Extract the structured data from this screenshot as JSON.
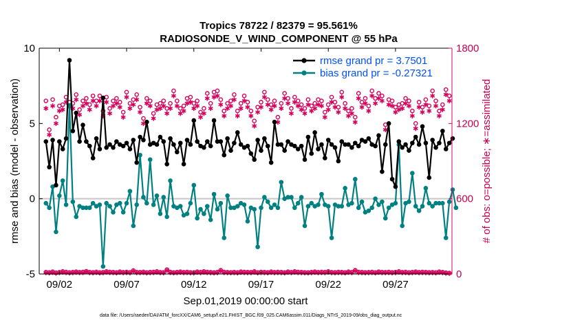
{
  "chart_data": {
    "type": "line",
    "title": "Tropics 78722 / 82379 = 95.561%",
    "subtitle": "RADIOSONDE_V_WIND_COMPONENT @ 55 hPa",
    "xlabel": "Sep.01,2019 00:00:00 start",
    "ylabel_left": "rmse and bias (model - observation)",
    "ylabel_right": "# of obs: o=possible; ∗=assimilated",
    "footer": "data file: /Users/raeder/DAI/ATM_forcXX/CAM6_setup/f.e21.FHIST_BGC.f09_025.CAM6assim.011/Diags_NTrS_2019-09/obs_diag_output.nc",
    "xlim": [
      0.5,
      31.2
    ],
    "ylim_left": [
      -5,
      10
    ],
    "ylim_right": [
      0,
      1800
    ],
    "x_ticks": [
      {
        "value": 2,
        "label": "09/02"
      },
      {
        "value": 7,
        "label": "09/07"
      },
      {
        "value": 12,
        "label": "09/12"
      },
      {
        "value": 17,
        "label": "09/17"
      },
      {
        "value": 22,
        "label": "09/22"
      },
      {
        "value": 27,
        "label": "09/27"
      }
    ],
    "y_ticks_left": [
      "-5",
      "0",
      "5",
      "10"
    ],
    "y_ticks_right": [
      "0",
      "600",
      "1200",
      "1800"
    ],
    "colors": {
      "rmse": "#000000",
      "bias": "#008080",
      "obs": "#d6005a",
      "legend_text": "#0050ff",
      "zero_line": "#c8c8c8"
    },
    "series": [
      {
        "name": "rmse grand pr = 3.7501",
        "axis": "left",
        "values": [
          3.8,
          2.1,
          3.9,
          0.9,
          3.8,
          3.3,
          4.0,
          9.2,
          4.5,
          5.7,
          3.8,
          4.9,
          3.8,
          3.5,
          2.7,
          4.0,
          3.3,
          6.7,
          3.4,
          3.6,
          3.4,
          3.8,
          3.6,
          3.5,
          3.7,
          3.3,
          3.9,
          2.4,
          4.1,
          3.9,
          5.1,
          3.6,
          3.7,
          3.6,
          4.1,
          3.8,
          2.3,
          4.0,
          3.6,
          3.1,
          3.7,
          2.3,
          3.9,
          3.6,
          5.2,
          3.8,
          3.5,
          3.4,
          3.8,
          3.5,
          5.2,
          3.8,
          3.8,
          2.9,
          4.0,
          3.2,
          3.7,
          4.4,
          3.6,
          3.4,
          3.5,
          3.0,
          2.6,
          3.9,
          3.2,
          4.0,
          3.5,
          2.4,
          5.1,
          3.6,
          3.6,
          3.2,
          3.8,
          3.6,
          3.5,
          3.3,
          3.5,
          2.6,
          4.1,
          3.0,
          4.4,
          3.3,
          3.6,
          2.7,
          3.9,
          3.6,
          3.4,
          2.5,
          3.8,
          3.6,
          3.6,
          3.4,
          3.7,
          3.5,
          3.9,
          3.8,
          4.0,
          3.6,
          3.5,
          4.2,
          1.8,
          3.6,
          5.0,
          1.3,
          0.8,
          3.8,
          3.4,
          3.6,
          3.2,
          3.7,
          4.1,
          3.6,
          4.8,
          3.7,
          1.4,
          3.9,
          3.4,
          3.7,
          4.5,
          3.3,
          3.7,
          4.0
        ]
      },
      {
        "name": "bias grand pr = -0.27321",
        "axis": "left",
        "values": [
          -0.3,
          -0.6,
          0.8,
          -2.2,
          0.2,
          1.2,
          -0.4,
          6.2,
          -0.2,
          -1.2,
          -0.5,
          -0.6,
          -0.6,
          -0.6,
          -0.3,
          -0.5,
          -0.4,
          -4.5,
          -0.3,
          -0.5,
          -0.9,
          -0.4,
          -0.3,
          -0.9,
          -0.3,
          0.5,
          -1.8,
          -0.4,
          2.9,
          0.1,
          -0.3,
          2.6,
          -0.4,
          0.2,
          -1.0,
          0.1,
          -1.2,
          1.2,
          -0.5,
          -0.6,
          -0.5,
          -1.1,
          -1.0,
          -0.3,
          0.9,
          -1.3,
          -0.7,
          -1.0,
          -0.5,
          -1.4,
          0.3,
          -0.7,
          -0.3,
          -2.6,
          0.2,
          -0.6,
          -0.6,
          -0.5,
          -0.3,
          -0.4,
          -1.5,
          -0.6,
          -0.7,
          -3.2,
          -0.6,
          0.1,
          -0.2,
          -0.6,
          -0.4,
          -0.6,
          1.1,
          0.0,
          0.1,
          0.1,
          -0.6,
          -0.3,
          0.1,
          -1.8,
          -0.5,
          -0.3,
          -0.5,
          -0.4,
          0.3,
          -0.4,
          -0.5,
          -2.6,
          -0.4,
          -0.5,
          -0.5,
          0.7,
          -0.4,
          -0.3,
          1.3,
          -0.6,
          -0.2,
          -0.9,
          -0.8,
          -0.6,
          0.0,
          -0.4,
          -0.2,
          -1.3,
          -0.6,
          -0.4,
          -0.3,
          3.6,
          -1.8,
          -0.3,
          -0.2,
          1.7,
          -0.5,
          -0.8,
          -0.5,
          0.7,
          -0.3,
          -0.5,
          -0.3,
          -0.3,
          -0.3,
          -2.6,
          -0.2,
          0.6,
          -0.6
        ]
      },
      {
        "name": "possible",
        "axis": "right",
        "marker": "o",
        "values": [
          1380,
          1150,
          1390,
          1250,
          1340,
          1350,
          1410,
          1370,
          1360,
          1430,
          1310,
          1380,
          1400,
          1350,
          1420,
          1380,
          1420,
          1300,
          1410,
          1320,
          1380,
          1400,
          1370,
          1290,
          1450,
          1360,
          1390,
          1430,
          1330,
          1240,
          1400,
          1380,
          1280,
          1350,
          1360,
          1380,
          1320,
          1360,
          1460,
          1380,
          1320,
          1340,
          1400,
          1410,
          1360,
          1380,
          1290,
          1320,
          1440,
          1360,
          1450,
          1460,
          1390,
          1300,
          1360,
          1380,
          1430,
          1300,
          1360,
          1420,
          1370,
          1300,
          1220,
          1330,
          1370,
          1450,
          1390,
          1350,
          1380,
          1250,
          1360,
          1440,
          1400,
          1320,
          1410,
          1380,
          1350,
          1320,
          1390,
          1340,
          1360,
          1390,
          1380,
          1290,
          1350,
          1410,
          1370,
          1330,
          1450,
          1360,
          1300,
          1320,
          1250,
          1440,
          1370,
          1400,
          1340,
          1460,
          1400,
          1440,
          1420,
          1190,
          1390,
          1380,
          1330,
          1350,
          1360,
          1400,
          1380,
          1300,
          1200,
          1370,
          1330,
          1390,
          1340,
          1460,
          1380,
          1300,
          1350,
          1470,
          1420
        ]
      },
      {
        "name": "assimilated",
        "axis": "right",
        "marker": "*",
        "values": [
          1320,
          1110,
          1340,
          1200,
          1300,
          1310,
          1370,
          1330,
          1320,
          1390,
          1270,
          1340,
          1360,
          1310,
          1380,
          1340,
          1380,
          1260,
          1370,
          1280,
          1340,
          1360,
          1330,
          1250,
          1410,
          1320,
          1350,
          1390,
          1290,
          1200,
          1360,
          1340,
          1240,
          1310,
          1320,
          1340,
          1280,
          1320,
          1420,
          1340,
          1280,
          1300,
          1360,
          1370,
          1320,
          1340,
          1250,
          1280,
          1400,
          1320,
          1410,
          1420,
          1350,
          1260,
          1320,
          1340,
          1390,
          1260,
          1320,
          1380,
          1330,
          1260,
          1180,
          1290,
          1330,
          1410,
          1350,
          1310,
          1340,
          1210,
          1320,
          1400,
          1360,
          1280,
          1370,
          1340,
          1310,
          1280,
          1350,
          1300,
          1320,
          1350,
          1340,
          1250,
          1310,
          1370,
          1330,
          1290,
          1410,
          1320,
          1260,
          1280,
          1210,
          1400,
          1330,
          1360,
          1300,
          1420,
          1360,
          1400,
          1380,
          1150,
          1350,
          1340,
          1290,
          1310,
          1320,
          1360,
          1340,
          1260,
          1160,
          1330,
          1290,
          1350,
          1300,
          1420,
          1340,
          1260,
          1310,
          1430,
          1380
        ]
      },
      {
        "name": "possible-bottom",
        "axis": "right",
        "marker": "o",
        "values": [
          15,
          12,
          18,
          10,
          14,
          20,
          16,
          12,
          15,
          18,
          14,
          16,
          22,
          15,
          13,
          17,
          12,
          14,
          20,
          16,
          15,
          12,
          18,
          14,
          16,
          13,
          28,
          15,
          14,
          17,
          12,
          15,
          16,
          20,
          14,
          13,
          35,
          16,
          12,
          15,
          18,
          14,
          16,
          13,
          12,
          18,
          15,
          20,
          16,
          14,
          12,
          15,
          30,
          16,
          14,
          13,
          15,
          12,
          18,
          16,
          15,
          14,
          20,
          12,
          16,
          15,
          13,
          18,
          14,
          16,
          15,
          12,
          18,
          14,
          20,
          16,
          15,
          13,
          12,
          15,
          18,
          14,
          16,
          15,
          20,
          14,
          13,
          16,
          15,
          12,
          18,
          14,
          30,
          16,
          15,
          13,
          14,
          16,
          12,
          18,
          15,
          14,
          16,
          13,
          15,
          20,
          14,
          16,
          12,
          15,
          18,
          14,
          16,
          15,
          13,
          14,
          12,
          18,
          15,
          10,
          8
        ]
      },
      {
        "name": "assimilated-bottom",
        "axis": "right",
        "marker": "*",
        "values": [
          10,
          8,
          12,
          6,
          10,
          15,
          11,
          8,
          10,
          13,
          10,
          11,
          18,
          10,
          9,
          12,
          8,
          10,
          15,
          11,
          10,
          8,
          13,
          10,
          11,
          9,
          22,
          10,
          10,
          12,
          8,
          10,
          11,
          15,
          10,
          9,
          28,
          11,
          8,
          10,
          13,
          10,
          11,
          9,
          8,
          13,
          10,
          15,
          11,
          10,
          8,
          10,
          24,
          11,
          10,
          9,
          10,
          8,
          13,
          11,
          10,
          10,
          15,
          8,
          11,
          10,
          9,
          13,
          10,
          11,
          10,
          8,
          13,
          10,
          15,
          11,
          10,
          9,
          8,
          10,
          13,
          10,
          11,
          10,
          15,
          10,
          9,
          11,
          10,
          8,
          13,
          10,
          24,
          11,
          10,
          9,
          10,
          11,
          8,
          13,
          10,
          10,
          11,
          9,
          10,
          15,
          10,
          11,
          8,
          10,
          13,
          10,
          11,
          10,
          9,
          10,
          8,
          13,
          10,
          6,
          5
        ]
      }
    ]
  }
}
